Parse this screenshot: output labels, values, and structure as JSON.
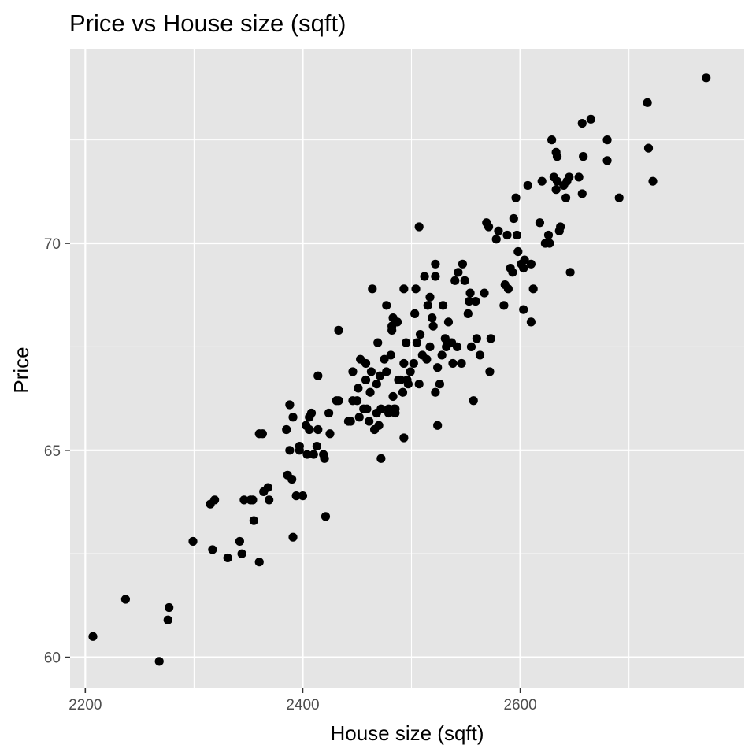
{
  "chart_data": {
    "type": "scatter",
    "title": "Price vs House size (sqft)",
    "xlabel": "House size (sqft)",
    "ylabel": "Price",
    "xlim": [
      2186,
      2806
    ],
    "ylim": [
      59.25,
      74.7
    ],
    "xticks": [
      2200,
      2400,
      2600
    ],
    "yticks": [
      60,
      65,
      70
    ],
    "grid": true,
    "legend": "none",
    "colors": {
      "panel": "#e5e5e5",
      "grid": "#ffffff",
      "point": "#000000",
      "tick": "#4d4d4d"
    },
    "series": [
      {
        "points": [
          [
            2207,
            60.5
          ],
          [
            2237,
            61.4
          ],
          [
            2268,
            59.9
          ],
          [
            2276,
            60.9
          ],
          [
            2277,
            61.2
          ],
          [
            2299,
            62.8
          ],
          [
            2315,
            63.7
          ],
          [
            2317,
            62.6
          ],
          [
            2319,
            63.8
          ],
          [
            2331,
            62.4
          ],
          [
            2342,
            62.8
          ],
          [
            2344,
            62.5
          ],
          [
            2346,
            63.8
          ],
          [
            2352,
            63.8
          ],
          [
            2354,
            63.8
          ],
          [
            2355,
            63.3
          ],
          [
            2360,
            62.3
          ],
          [
            2360,
            65.4
          ],
          [
            2363,
            65.4
          ],
          [
            2364,
            64.0
          ],
          [
            2368,
            64.1
          ],
          [
            2369,
            63.8
          ],
          [
            2385,
            65.5
          ],
          [
            2386,
            64.4
          ],
          [
            2388,
            66.1
          ],
          [
            2388,
            65.0
          ],
          [
            2390,
            64.3
          ],
          [
            2391,
            65.8
          ],
          [
            2391,
            62.9
          ],
          [
            2394,
            63.9
          ],
          [
            2397,
            65.0
          ],
          [
            2397,
            65.1
          ],
          [
            2400,
            63.9
          ],
          [
            2403,
            65.6
          ],
          [
            2404,
            64.9
          ],
          [
            2406,
            65.5
          ],
          [
            2406,
            65.8
          ],
          [
            2408,
            65.9
          ],
          [
            2410,
            64.9
          ],
          [
            2413,
            65.1
          ],
          [
            2414,
            66.8
          ],
          [
            2414,
            65.5
          ],
          [
            2419,
            64.9
          ],
          [
            2420,
            64.8
          ],
          [
            2421,
            63.4
          ],
          [
            2424,
            65.9
          ],
          [
            2425,
            65.4
          ],
          [
            2431,
            66.2
          ],
          [
            2433,
            66.2
          ],
          [
            2433,
            67.9
          ],
          [
            2442,
            65.7
          ],
          [
            2444,
            65.7
          ],
          [
            2446,
            66.9
          ],
          [
            2446,
            66.2
          ],
          [
            2450,
            66.2
          ],
          [
            2451,
            66.5
          ],
          [
            2452,
            65.8
          ],
          [
            2453,
            67.2
          ],
          [
            2456,
            66.0
          ],
          [
            2458,
            67.1
          ],
          [
            2458,
            66.7
          ],
          [
            2459,
            66.0
          ],
          [
            2461,
            65.7
          ],
          [
            2462,
            66.4
          ],
          [
            2463,
            66.9
          ],
          [
            2464,
            68.9
          ],
          [
            2466,
            65.5
          ],
          [
            2468,
            65.9
          ],
          [
            2468,
            66.6
          ],
          [
            2469,
            67.6
          ],
          [
            2470,
            65.6
          ],
          [
            2471,
            66.8
          ],
          [
            2472,
            64.8
          ],
          [
            2472,
            66.0
          ],
          [
            2475,
            67.2
          ],
          [
            2477,
            66.9
          ],
          [
            2477,
            68.5
          ],
          [
            2479,
            66.0
          ],
          [
            2479,
            65.9
          ],
          [
            2481,
            67.3
          ],
          [
            2482,
            68.0
          ],
          [
            2482,
            67.9
          ],
          [
            2483,
            66.3
          ],
          [
            2483,
            68.2
          ],
          [
            2484,
            66.0
          ],
          [
            2485,
            66.0
          ],
          [
            2485,
            65.9
          ],
          [
            2487,
            68.1
          ],
          [
            2488,
            66.7
          ],
          [
            2490,
            66.7
          ],
          [
            2492,
            66.4
          ],
          [
            2493,
            67.1
          ],
          [
            2493,
            68.9
          ],
          [
            2493,
            65.3
          ],
          [
            2495,
            67.6
          ],
          [
            2496,
            66.7
          ],
          [
            2497,
            66.6
          ],
          [
            2499,
            66.9
          ],
          [
            2502,
            67.1
          ],
          [
            2503,
            68.3
          ],
          [
            2504,
            68.9
          ],
          [
            2505,
            67.6
          ],
          [
            2507,
            70.4
          ],
          [
            2507,
            66.6
          ],
          [
            2508,
            67.8
          ],
          [
            2510,
            67.3
          ],
          [
            2512,
            69.2
          ],
          [
            2514,
            67.2
          ],
          [
            2515,
            68.5
          ],
          [
            2517,
            67.5
          ],
          [
            2517,
            68.7
          ],
          [
            2519,
            68.2
          ],
          [
            2520,
            68.0
          ],
          [
            2522,
            69.2
          ],
          [
            2522,
            66.4
          ],
          [
            2522,
            69.5
          ],
          [
            2524,
            65.6
          ],
          [
            2524,
            67.0
          ],
          [
            2526,
            66.6
          ],
          [
            2528,
            67.3
          ],
          [
            2529,
            68.5
          ],
          [
            2531,
            67.7
          ],
          [
            2532,
            67.5
          ],
          [
            2534,
            68.1
          ],
          [
            2537,
            67.6
          ],
          [
            2538,
            67.1
          ],
          [
            2540,
            69.1
          ],
          [
            2542,
            67.5
          ],
          [
            2543,
            69.3
          ],
          [
            2546,
            67.1
          ],
          [
            2547,
            69.5
          ],
          [
            2549,
            69.1
          ],
          [
            2552,
            68.3
          ],
          [
            2553,
            68.6
          ],
          [
            2554,
            68.8
          ],
          [
            2555,
            67.5
          ],
          [
            2557,
            66.2
          ],
          [
            2559,
            68.6
          ],
          [
            2560,
            67.7
          ],
          [
            2563,
            67.3
          ],
          [
            2567,
            68.8
          ],
          [
            2569,
            70.5
          ],
          [
            2571,
            70.4
          ],
          [
            2572,
            66.9
          ],
          [
            2573,
            67.7
          ],
          [
            2578,
            70.1
          ],
          [
            2580,
            70.3
          ],
          [
            2585,
            68.5
          ],
          [
            2586,
            69.0
          ],
          [
            2588,
            70.2
          ],
          [
            2589,
            68.9
          ],
          [
            2591,
            69.4
          ],
          [
            2593,
            69.3
          ],
          [
            2594,
            70.6
          ],
          [
            2596,
            71.1
          ],
          [
            2597,
            70.2
          ],
          [
            2598,
            69.8
          ],
          [
            2601,
            69.5
          ],
          [
            2603,
            69.4
          ],
          [
            2603,
            68.4
          ],
          [
            2604,
            69.6
          ],
          [
            2607,
            71.4
          ],
          [
            2610,
            69.5
          ],
          [
            2610,
            68.1
          ],
          [
            2612,
            68.9
          ],
          [
            2618,
            70.5
          ],
          [
            2620,
            71.5
          ],
          [
            2623,
            70.0
          ],
          [
            2626,
            70.2
          ],
          [
            2627,
            70.0
          ],
          [
            2629,
            72.5
          ],
          [
            2631,
            71.6
          ],
          [
            2633,
            71.3
          ],
          [
            2633,
            72.2
          ],
          [
            2634,
            72.1
          ],
          [
            2634,
            71.5
          ],
          [
            2636,
            70.3
          ],
          [
            2637,
            70.4
          ],
          [
            2640,
            71.4
          ],
          [
            2642,
            71.1
          ],
          [
            2643,
            71.5
          ],
          [
            2645,
            71.6
          ],
          [
            2646,
            69.3
          ],
          [
            2654,
            71.6
          ],
          [
            2657,
            71.2
          ],
          [
            2657,
            72.9
          ],
          [
            2658,
            72.1
          ],
          [
            2665,
            73.0
          ],
          [
            2680,
            72.5
          ],
          [
            2680,
            72.0
          ],
          [
            2691,
            71.1
          ],
          [
            2717,
            73.4
          ],
          [
            2718,
            72.3
          ],
          [
            2722,
            71.5
          ],
          [
            2771,
            74.0
          ]
        ]
      }
    ]
  }
}
